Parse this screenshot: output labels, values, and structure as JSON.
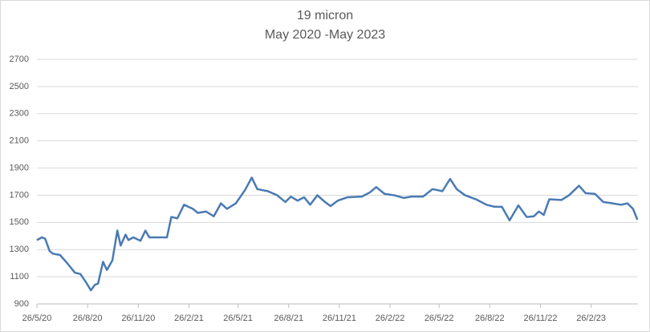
{
  "chart_data": {
    "type": "line",
    "title": "19 micron",
    "subtitle": "May 2020 -May 2023",
    "x": [
      "2020-05-26",
      "2020-06-04",
      "2020-06-10",
      "2020-06-18",
      "2020-06-24",
      "2020-07-07",
      "2020-07-22",
      "2020-08-03",
      "2020-08-13",
      "2020-08-23",
      "2020-09-01",
      "2020-09-08",
      "2020-09-14",
      "2020-09-23",
      "2020-09-30",
      "2020-10-10",
      "2020-10-19",
      "2020-10-25",
      "2020-11-03",
      "2020-11-08",
      "2020-11-17",
      "2020-11-30",
      "2020-12-09",
      "2020-12-16",
      "2021-01-06",
      "2021-01-17",
      "2021-01-25",
      "2021-02-05",
      "2021-02-17",
      "2021-03-05",
      "2021-03-14",
      "2021-03-29",
      "2021-04-12",
      "2021-04-25",
      "2021-05-06",
      "2021-05-22",
      "2021-06-08",
      "2021-06-20",
      "2021-06-30",
      "2021-07-19",
      "2021-08-05",
      "2021-08-20",
      "2021-08-30",
      "2021-09-11",
      "2021-09-23",
      "2021-10-04",
      "2021-10-17",
      "2021-10-31",
      "2021-11-10",
      "2021-11-23",
      "2021-12-11",
      "2022-01-06",
      "2022-01-20",
      "2022-02-01",
      "2022-02-16",
      "2022-03-05",
      "2022-03-23",
      "2022-04-06",
      "2022-04-27",
      "2022-05-14",
      "2022-06-01",
      "2022-06-15",
      "2022-06-27",
      "2022-07-12",
      "2022-08-01",
      "2022-08-20",
      "2022-09-04",
      "2022-09-17",
      "2022-10-01",
      "2022-10-17",
      "2022-11-01",
      "2022-11-14",
      "2022-11-23",
      "2022-12-02",
      "2022-12-12",
      "2023-01-03",
      "2023-01-17",
      "2023-02-04",
      "2023-02-16",
      "2023-03-05",
      "2023-03-20",
      "2023-04-06",
      "2023-04-21",
      "2023-05-03",
      "2023-05-13",
      "2023-05-21"
    ],
    "series": [
      {
        "color": "#4a7ab4",
        "values": [
          1370,
          1390,
          1380,
          1290,
          1270,
          1260,
          1190,
          1130,
          1120,
          1060,
          1000,
          1040,
          1050,
          1210,
          1150,
          1220,
          1440,
          1330,
          1410,
          1370,
          1390,
          1365,
          1440,
          1390,
          1390,
          1390,
          1540,
          1530,
          1630,
          1600,
          1570,
          1580,
          1545,
          1640,
          1600,
          1640,
          1740,
          1830,
          1745,
          1730,
          1700,
          1650,
          1690,
          1660,
          1685,
          1630,
          1700,
          1650,
          1620,
          1660,
          1685,
          1690,
          1720,
          1760,
          1710,
          1700,
          1680,
          1690,
          1690,
          1745,
          1730,
          1820,
          1745,
          1700,
          1670,
          1630,
          1615,
          1615,
          1515,
          1625,
          1540,
          1545,
          1580,
          1555,
          1670,
          1665,
          1700,
          1770,
          1715,
          1710,
          1650,
          1640,
          1630,
          1640,
          1600,
          1520
        ]
      }
    ],
    "xlim": [
      "2020-05-26",
      "2023-05-22"
    ],
    "xticks": [
      {
        "value": "2020-05-26",
        "label": "26/5/20"
      },
      {
        "value": "2020-08-26",
        "label": "26/8/20"
      },
      {
        "value": "2020-11-26",
        "label": "26/11/20"
      },
      {
        "value": "2021-02-26",
        "label": "26/2/21"
      },
      {
        "value": "2021-05-26",
        "label": "26/5/21"
      },
      {
        "value": "2021-08-26",
        "label": "26/8/21"
      },
      {
        "value": "2021-11-26",
        "label": "26/11/21"
      },
      {
        "value": "2022-02-26",
        "label": "26/2/22"
      },
      {
        "value": "2022-05-26",
        "label": "26/5/22"
      },
      {
        "value": "2022-08-26",
        "label": "26/8/22"
      },
      {
        "value": "2022-11-26",
        "label": "26/11/22"
      },
      {
        "value": "2023-02-26",
        "label": "26/2/23"
      }
    ],
    "ylim": [
      900,
      2700
    ],
    "yticks": [
      900,
      1100,
      1300,
      1500,
      1700,
      1900,
      2100,
      2300,
      2500,
      2700
    ],
    "grid": true
  }
}
